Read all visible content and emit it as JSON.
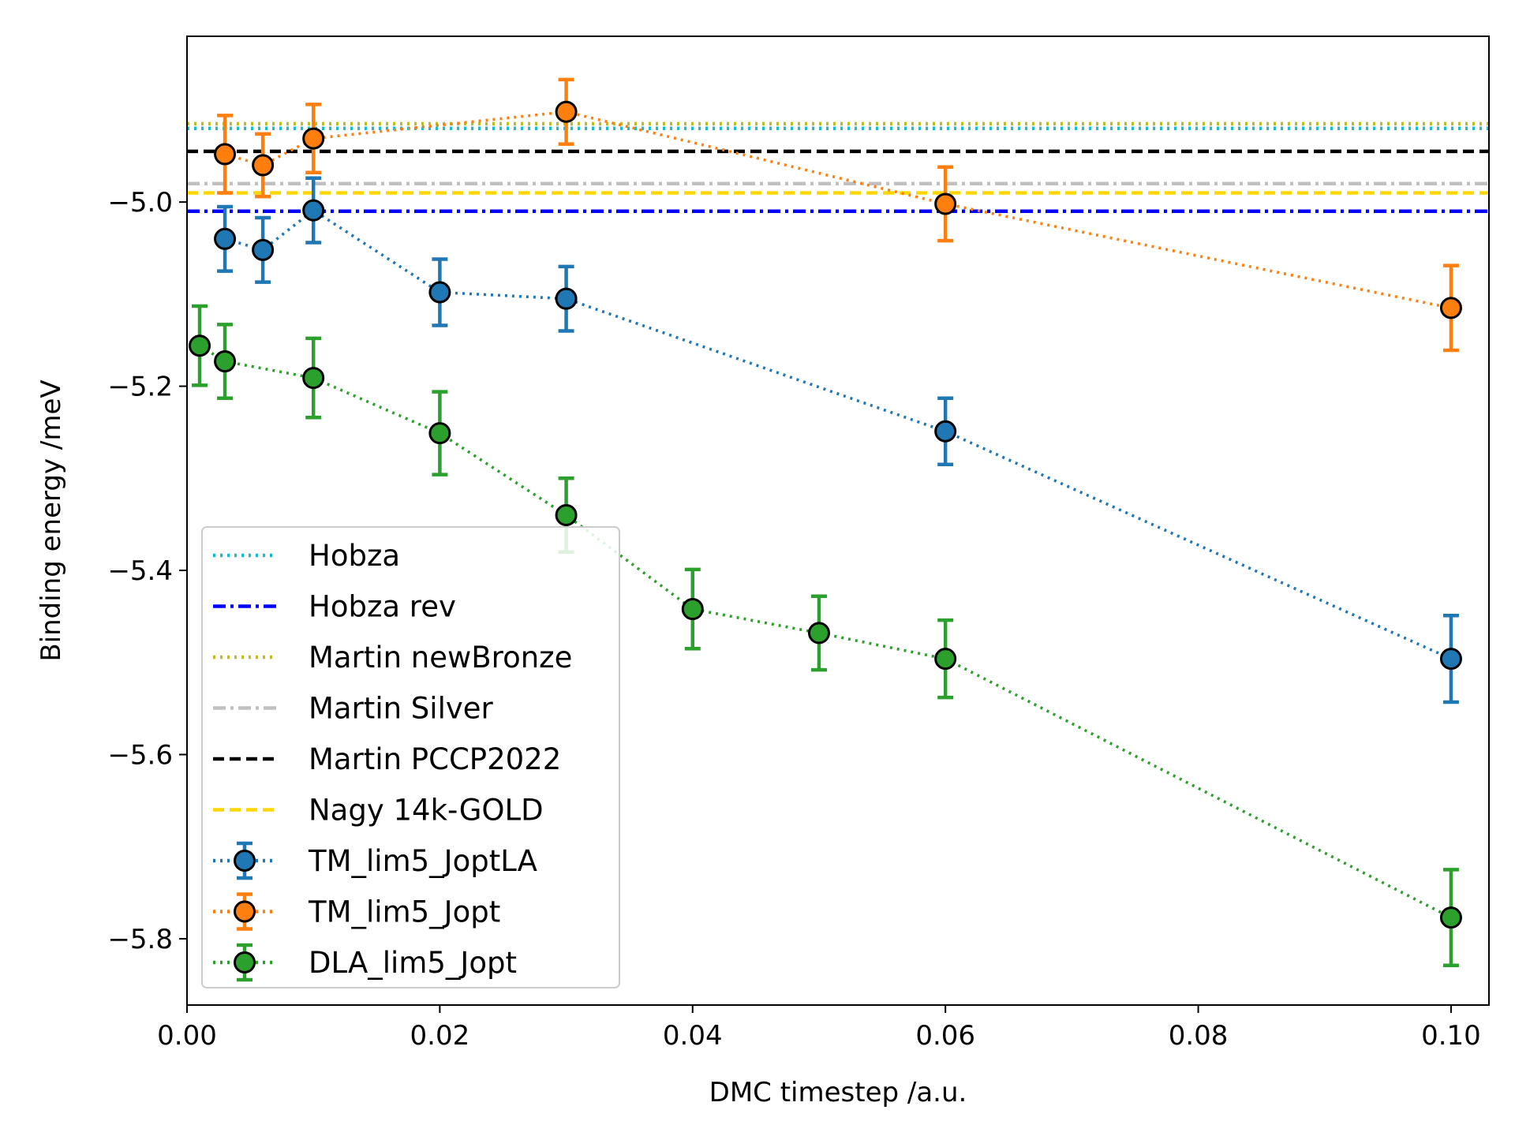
{
  "chart_data": {
    "type": "line",
    "title": "",
    "xlabel": "DMC timestep /a.u.",
    "ylabel": "Binding energy /meV",
    "xlim": [
      0.0,
      0.103
    ],
    "ylim": [
      -5.872,
      -4.82
    ],
    "x_ticks": [
      0.0,
      0.02,
      0.04,
      0.06,
      0.08,
      0.1
    ],
    "x_tick_labels": [
      "0.00",
      "0.02",
      "0.04",
      "0.06",
      "0.08",
      "0.10"
    ],
    "y_ticks": [
      -5.8,
      -5.6,
      -5.4,
      -5.2,
      -5.0
    ],
    "y_tick_labels": [
      "−5.8",
      "−5.6",
      "−5.4",
      "−5.2",
      "−5.0"
    ],
    "grid": false,
    "legend_position": "lower-left",
    "reference_lines": [
      {
        "name": "Hobza",
        "y": -4.92,
        "color": "#17becf",
        "style": "dotted"
      },
      {
        "name": "Hobza rev",
        "y": -5.01,
        "color": "#0000ff",
        "style": "dashdot"
      },
      {
        "name": "Martin newBronze",
        "y": -4.915,
        "color": "#bcbd22",
        "style": "dotted"
      },
      {
        "name": "Martin Silver",
        "y": -4.98,
        "color": "#c0c0c0",
        "style": "dashdot"
      },
      {
        "name": "Martin PCCP2022",
        "y": -4.945,
        "color": "#000000",
        "style": "dashed"
      },
      {
        "name": "Nagy 14k-GOLD",
        "y": -4.99,
        "color": "#ffd700",
        "style": "dashed"
      }
    ],
    "series": [
      {
        "name": "TM_lim5_JoptLA",
        "color": "#1f77b4",
        "x": [
          0.003,
          0.006,
          0.01,
          0.02,
          0.03,
          0.06,
          0.1
        ],
        "y": [
          -5.04,
          -5.052,
          -5.009,
          -5.098,
          -5.105,
          -5.249,
          -5.496
        ],
        "err": [
          0.035,
          0.035,
          0.035,
          0.036,
          0.035,
          0.036,
          0.047
        ]
      },
      {
        "name": "TM_lim5_Jopt",
        "color": "#ff7f0e",
        "x": [
          0.003,
          0.006,
          0.01,
          0.03,
          0.06,
          0.1
        ],
        "y": [
          -4.948,
          -4.96,
          -4.931,
          -4.902,
          -5.002,
          -5.115
        ],
        "err": [
          0.042,
          0.034,
          0.037,
          0.035,
          0.04,
          0.046
        ]
      },
      {
        "name": "DLA_lim5_Jopt",
        "color": "#2ca02c",
        "x": [
          0.001,
          0.003,
          0.01,
          0.02,
          0.03,
          0.04,
          0.05,
          0.06,
          0.1
        ],
        "y": [
          -5.156,
          -5.173,
          -5.191,
          -5.251,
          -5.34,
          -5.442,
          -5.468,
          -5.496,
          -5.777
        ],
        "err": [
          0.043,
          0.04,
          0.043,
          0.045,
          0.04,
          0.043,
          0.04,
          0.042,
          0.052
        ]
      }
    ]
  }
}
